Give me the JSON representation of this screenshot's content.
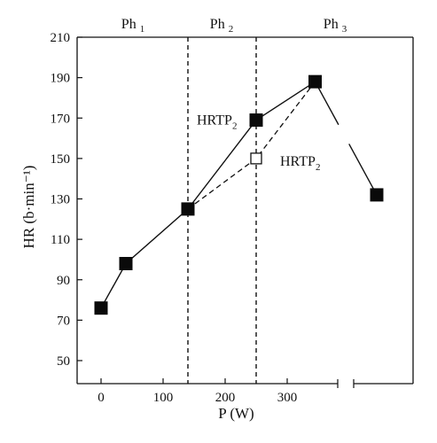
{
  "chart_data": {
    "type": "line",
    "xlabel": "P (W)",
    "ylabel": "HR (b·min⁻¹)",
    "xlim": [
      -30,
      385
    ],
    "ylim": [
      35,
      210
    ],
    "x_ticks": [
      0,
      100,
      200,
      300
    ],
    "y_ticks": [
      50,
      70,
      90,
      110,
      130,
      150,
      170,
      190,
      210
    ],
    "phases": [
      {
        "label": "Ph",
        "sub": "1"
      },
      {
        "label": "Ph",
        "sub": "2"
      },
      {
        "label": "Ph",
        "sub": "3"
      }
    ],
    "phase_boundaries_x": [
      140,
      250
    ],
    "series_solid": {
      "x": [
        0,
        40,
        140,
        250,
        345
      ],
      "y": [
        76,
        98,
        125,
        169,
        188
      ]
    },
    "series_dashed": {
      "x": [
        140,
        250,
        345
      ],
      "y": [
        125,
        150,
        188
      ]
    },
    "recovery_point": {
      "label_x": "post-break",
      "y": 132
    },
    "annotations": [
      {
        "text": "HRTP",
        "sub": "2",
        "x": 250,
        "y": 169,
        "marker": "filled"
      },
      {
        "text": "HRTP",
        "sub": "2",
        "x": 250,
        "y": 150,
        "marker": "open"
      }
    ],
    "axis_break": true,
    "grid": false
  }
}
